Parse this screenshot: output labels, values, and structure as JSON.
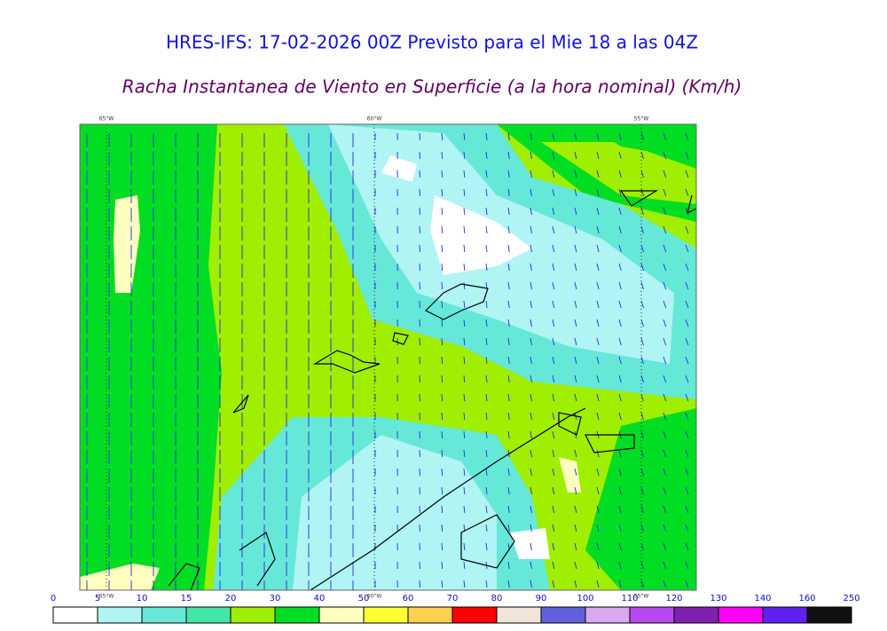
{
  "header": {
    "title": "HRES-IFS: 17-02-2026 00Z Previsto para el Mie 18 a las 04Z",
    "subtitle": "Racha Instantanea de Viento en Superficie (a la hora nominal) (Km/h)"
  },
  "map": {
    "longitudes": [
      "65°W",
      "60°W",
      "55°W"
    ]
  },
  "legend": {
    "ticks": [
      0,
      5,
      10,
      15,
      20,
      30,
      40,
      50,
      60,
      70,
      80,
      90,
      100,
      110,
      120,
      130,
      140,
      160,
      250
    ],
    "colors": [
      "#ffffff",
      "#b0f4f4",
      "#66e8d8",
      "#44e6a8",
      "#a0ee00",
      "#00dd22",
      "#ffffc0",
      "#ffff33",
      "#ffd050",
      "#ff0000",
      "#f2e4d8",
      "#6060dd",
      "#d8a8f0",
      "#b848f0",
      "#8020b0",
      "#ff00ff",
      "#6020f0",
      "#111111"
    ]
  }
}
